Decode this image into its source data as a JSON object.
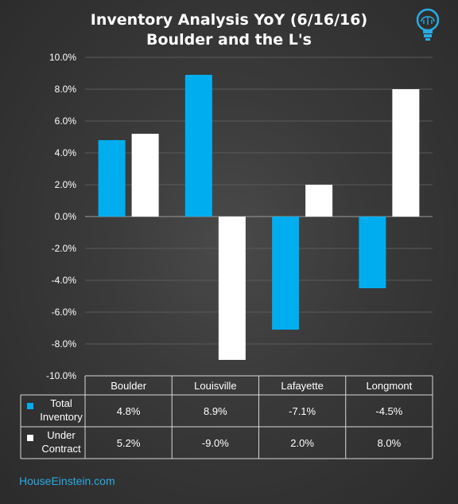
{
  "chart_data": {
    "type": "bar",
    "title": [
      "Inventory Analysis  YoY (6/16/16)",
      "Boulder and the L's"
    ],
    "categories": [
      "Boulder",
      "Louisville",
      "Lafayette",
      "Longmont"
    ],
    "series": [
      {
        "name": [
          "Total",
          "Inventory"
        ],
        "values": [
          4.8,
          8.9,
          -7.1,
          -4.5
        ],
        "labels": [
          "4.8%",
          "8.9%",
          "-7.1%",
          "-4.5%"
        ],
        "color": "#00aeef"
      },
      {
        "name": [
          "Under",
          "Contract"
        ],
        "values": [
          5.2,
          -9.0,
          2.0,
          8.0
        ],
        "labels": [
          "5.2%",
          "-9.0%",
          "2.0%",
          "8.0%"
        ],
        "color": "#ffffff"
      }
    ],
    "ylim": [
      -10,
      10
    ],
    "y_ticks": [
      10,
      8,
      6,
      4,
      2,
      0,
      -2,
      -4,
      -6,
      -8,
      -10
    ],
    "y_tick_labels": [
      "10.0%",
      "8.0%",
      "6.0%",
      "4.0%",
      "2.0%",
      "0.0%",
      "-2.0%",
      "-4.0%",
      "-6.0%",
      "-8.0%",
      "-10.0%"
    ],
    "grid": true,
    "legend": "data-table"
  },
  "footer": "HouseEinstein.com",
  "icon": "lightbulb-brain-icon",
  "colors": {
    "accent": "#00aeef",
    "grid": "#5a5a5a",
    "background": "#333333"
  }
}
